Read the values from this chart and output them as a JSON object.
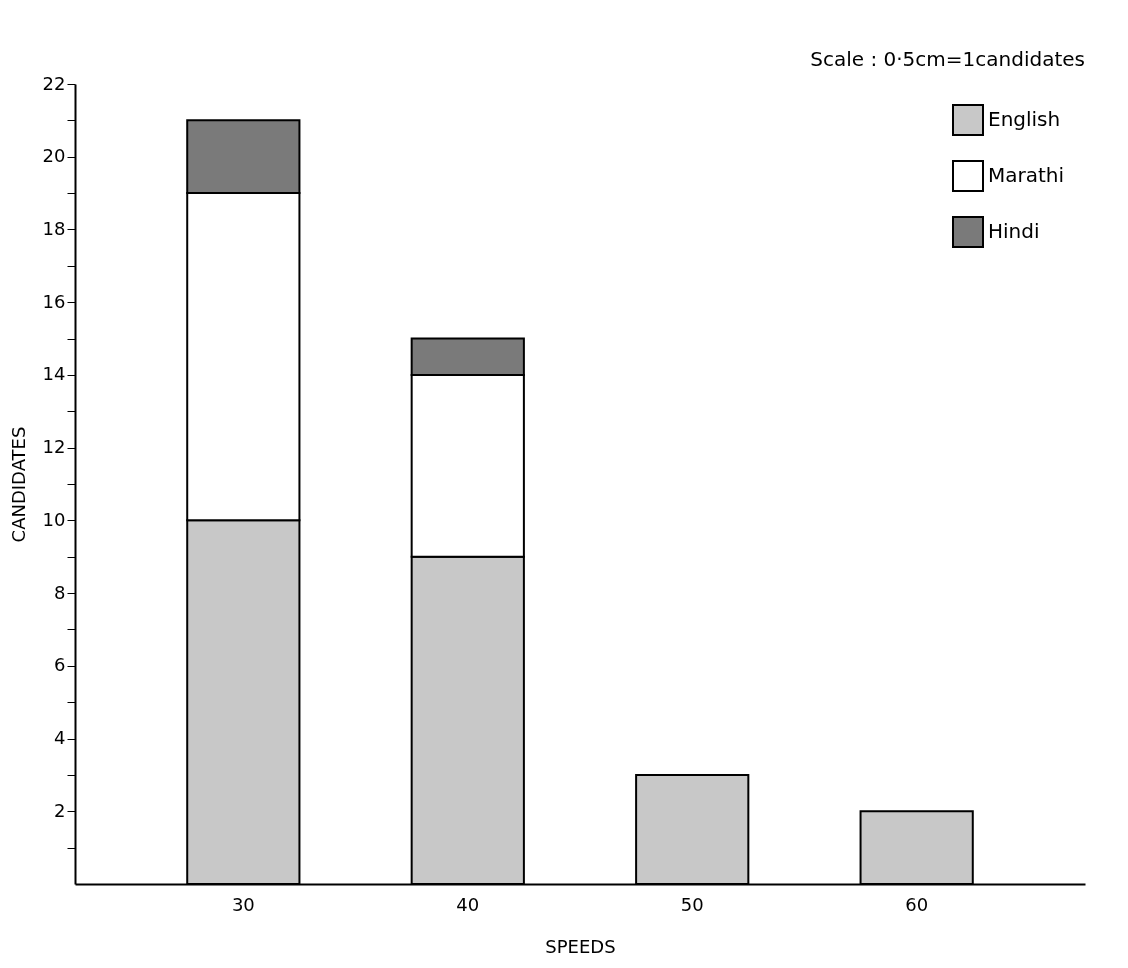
{
  "chart_data": {
    "type": "bar",
    "stacked": true,
    "xlabel": "SPEEDS",
    "ylabel": "CANDIDATES",
    "annotations": [
      "Scale : 0·5cm=1candidates"
    ],
    "categories": [
      "30",
      "40",
      "50",
      "60"
    ],
    "series": [
      {
        "name": "English",
        "color": "#c8c8c8",
        "values": [
          10,
          9,
          3,
          2
        ]
      },
      {
        "name": "Marathi",
        "color": "#ffffff",
        "values": [
          9,
          5,
          null,
          null
        ]
      },
      {
        "name": "Hindi",
        "color": "#7a7a7a",
        "values": [
          2,
          1,
          null,
          null
        ]
      }
    ],
    "ylim": [
      0,
      22
    ],
    "yticks": [
      {
        "value": 1,
        "label": null
      },
      2,
      {
        "value": 3,
        "label": null
      },
      4,
      {
        "value": 5,
        "label": null
      },
      6,
      {
        "value": 7,
        "label": null
      },
      8,
      {
        "value": 9,
        "label": null
      },
      10,
      {
        "value": 11,
        "label": null
      },
      12,
      {
        "value": 13,
        "label": null
      },
      14,
      {
        "value": 15,
        "label": null
      },
      16,
      {
        "value": 17,
        "label": null
      },
      18,
      {
        "value": 19,
        "label": null
      },
      20,
      {
        "value": 21,
        "label": null
      },
      22
    ],
    "grid": false,
    "legend": "top right"
  }
}
